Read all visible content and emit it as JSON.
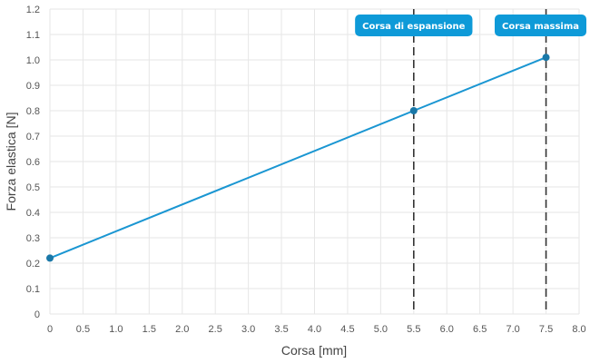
{
  "chart_data": {
    "type": "line",
    "x": [
      0,
      5.5,
      7.5
    ],
    "series": [
      {
        "values": [
          0.22,
          0.8,
          1.01
        ]
      }
    ],
    "xlabel": "Corsa [mm]",
    "ylabel": "Forza elastica [N]",
    "xlim": [
      0,
      8.0
    ],
    "ylim": [
      0,
      1.2
    ],
    "xticks": [
      "0",
      "0.5",
      "1.0",
      "1.5",
      "2.0",
      "2.5",
      "3.0",
      "3.5",
      "4.0",
      "4.5",
      "5.0",
      "5.5",
      "6.0",
      "6.5",
      "7.0",
      "7.5",
      "8.0"
    ],
    "yticks": [
      "0",
      "0.1",
      "0.2",
      "0.3",
      "0.4",
      "0.5",
      "0.6",
      "0.7",
      "0.8",
      "0.9",
      "1.0",
      "1.1",
      "1.2"
    ],
    "grid": true,
    "annotations": [
      {
        "x": 5.5,
        "label": "Corsa di espansione"
      },
      {
        "x": 7.5,
        "label": "Corsa massima"
      }
    ],
    "colors": {
      "line": "#1a96d2",
      "marker": "#1a78a8",
      "annotation_bg": "#0e9ad8",
      "annotation_line": "#333333",
      "grid": "#e6e6e6"
    }
  }
}
